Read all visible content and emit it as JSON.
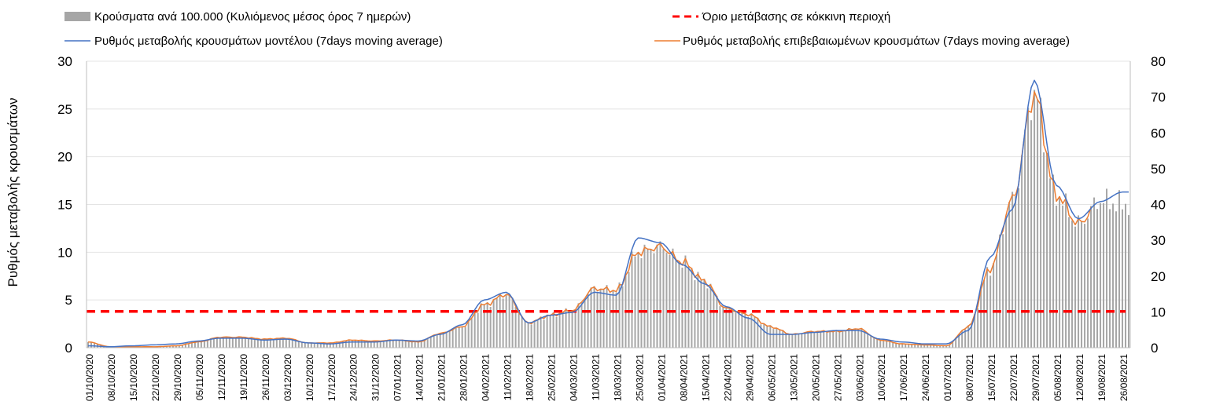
{
  "chart_data": {
    "type": "bar",
    "legend": {
      "bars_label": "Κρούσματα ανά 100.000 (Κυλιόμενος μέσος όρος 7 ημερών)",
      "threshold_label": "Όριο μετάβασης σε κόκκινη περιοχή",
      "model_label": "Ρυθμός μεταβολής κρουσμάτων μοντέλου (7days moving average)",
      "confirmed_label": "Ρυθμός μεταβολής επιβεβαιωμένων κρουσμάτων (7days moving average)"
    },
    "ylabel": "Ρυθμός μεταβολής κρουσμάτων",
    "ylim_left": [
      0,
      30
    ],
    "ylim_right": [
      0,
      80
    ],
    "left_ticks": [
      "0",
      "5",
      "10",
      "15",
      "20",
      "25",
      "30"
    ],
    "right_ticks": [
      "0",
      "10",
      "20",
      "30",
      "40",
      "50",
      "60",
      "70",
      "80"
    ],
    "threshold": 3.8,
    "x_labels": [
      "01/10/2020",
      "08/10/2020",
      "15/10/2020",
      "22/10/2020",
      "29/10/2020",
      "05/11/2020",
      "12/11/2020",
      "19/11/2020",
      "26/11/2020",
      "03/12/2020",
      "10/12/2020",
      "17/12/2020",
      "24/12/2020",
      "31/12/2020",
      "07/01/2021",
      "14/01/2021",
      "21/01/2021",
      "28/01/2021",
      "04/02/2021",
      "11/02/2021",
      "18/02/2021",
      "25/02/2021",
      "04/03/2021",
      "11/03/2021",
      "18/03/2021",
      "25/03/2021",
      "01/04/2021",
      "08/04/2021",
      "15/04/2021",
      "22/04/2021",
      "29/04/2021",
      "06/05/2021",
      "13/05/2021",
      "20/05/2021",
      "27/05/2021",
      "03/06/2021",
      "10/06/2021",
      "17/06/2021",
      "24/06/2021",
      "01/07/2021",
      "08/07/2021",
      "15/07/2021",
      "22/07/2021",
      "29/07/2021",
      "05/08/2021",
      "12/08/2021",
      "19/08/2021",
      "26/08/2021"
    ],
    "model_weekly": [
      0.2,
      0.1,
      0.2,
      0.3,
      0.4,
      0.7,
      1.0,
      1.0,
      0.8,
      0.9,
      0.5,
      0.4,
      0.6,
      0.6,
      0.8,
      0.7,
      1.4,
      2.4,
      5.0,
      5.8,
      2.6,
      3.4,
      3.7,
      5.8,
      5.5,
      11.5,
      11.0,
      8.7,
      6.7,
      4.3,
      3.1,
      1.4,
      1.4,
      1.6,
      1.8,
      1.8,
      0.9,
      0.6,
      0.4,
      0.4,
      1.8,
      9.5,
      14.5,
      28.0,
      17.0,
      13.5,
      15.3,
      16.3
    ],
    "confirmed_weekly": [
      0.6,
      0.1,
      0.1,
      0.1,
      0.2,
      0.6,
      1.1,
      1.1,
      0.9,
      1.0,
      0.5,
      0.5,
      0.8,
      0.7,
      0.8,
      0.6,
      1.5,
      2.2,
      4.5,
      5.6,
      2.6,
      3.4,
      3.9,
      6.2,
      6.0,
      10.0,
      10.6,
      9.0,
      7.0,
      4.1,
      3.5,
      2.2,
      1.4,
      1.7,
      1.7,
      2.0,
      0.8,
      0.4,
      0.3,
      0.2,
      2.2,
      8.3,
      15.5,
      26.5,
      16.0,
      13.0,
      15.4,
      15.0
    ]
  }
}
